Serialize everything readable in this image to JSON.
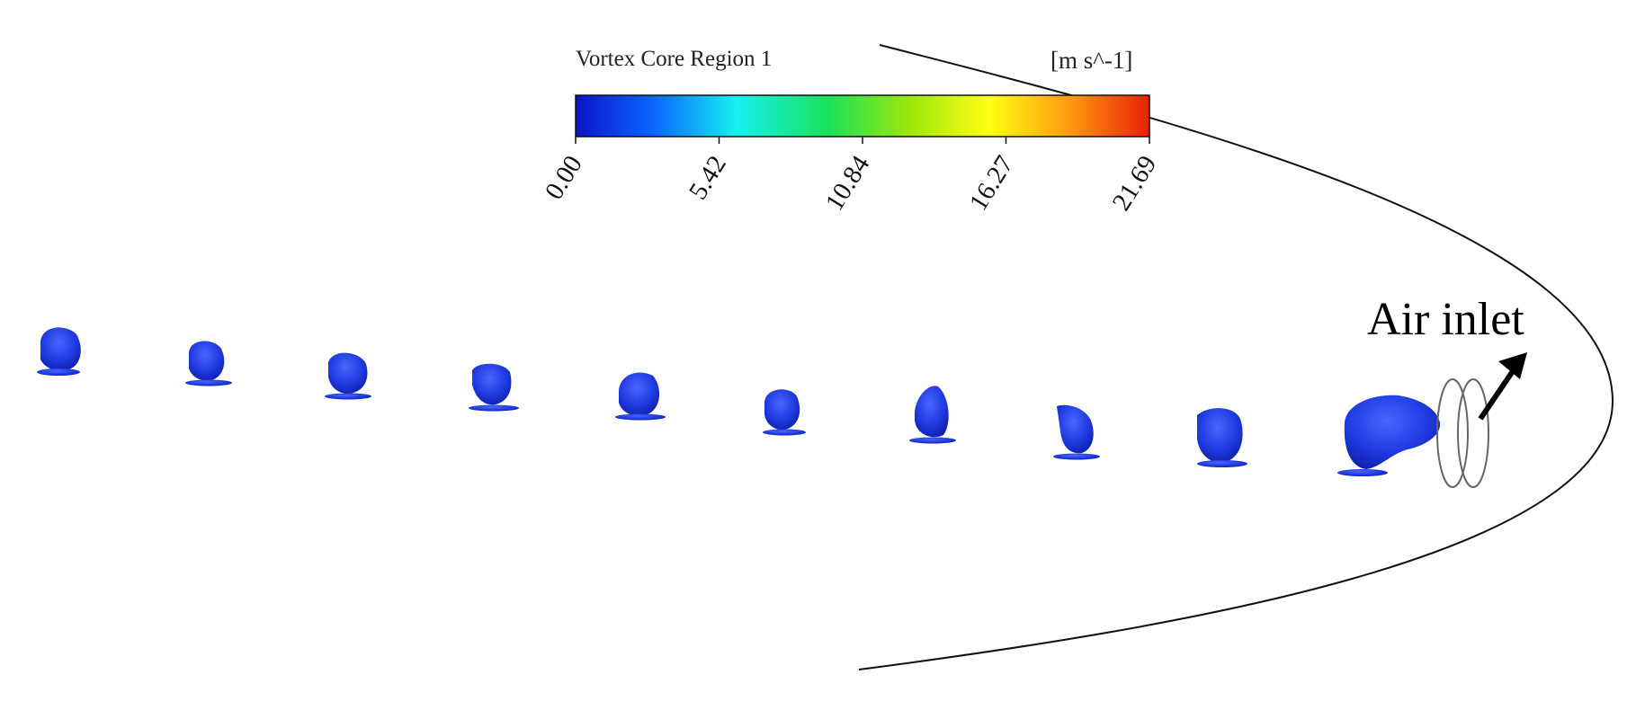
{
  "colorbar": {
    "title": "Vortex Core Region 1",
    "units": "[m s^-1]",
    "ticks": [
      "0.00",
      "5.42",
      "10.84",
      "16.27",
      "21.69"
    ],
    "colors": [
      "#0c12c8",
      "#0a6aff",
      "#16f0f0",
      "#19e25a",
      "#9be60c",
      "#ffff14",
      "#ff9a10",
      "#e8200a"
    ]
  },
  "annotation": {
    "label": "Air inlet"
  },
  "vortex_color": "#1f3ae0"
}
